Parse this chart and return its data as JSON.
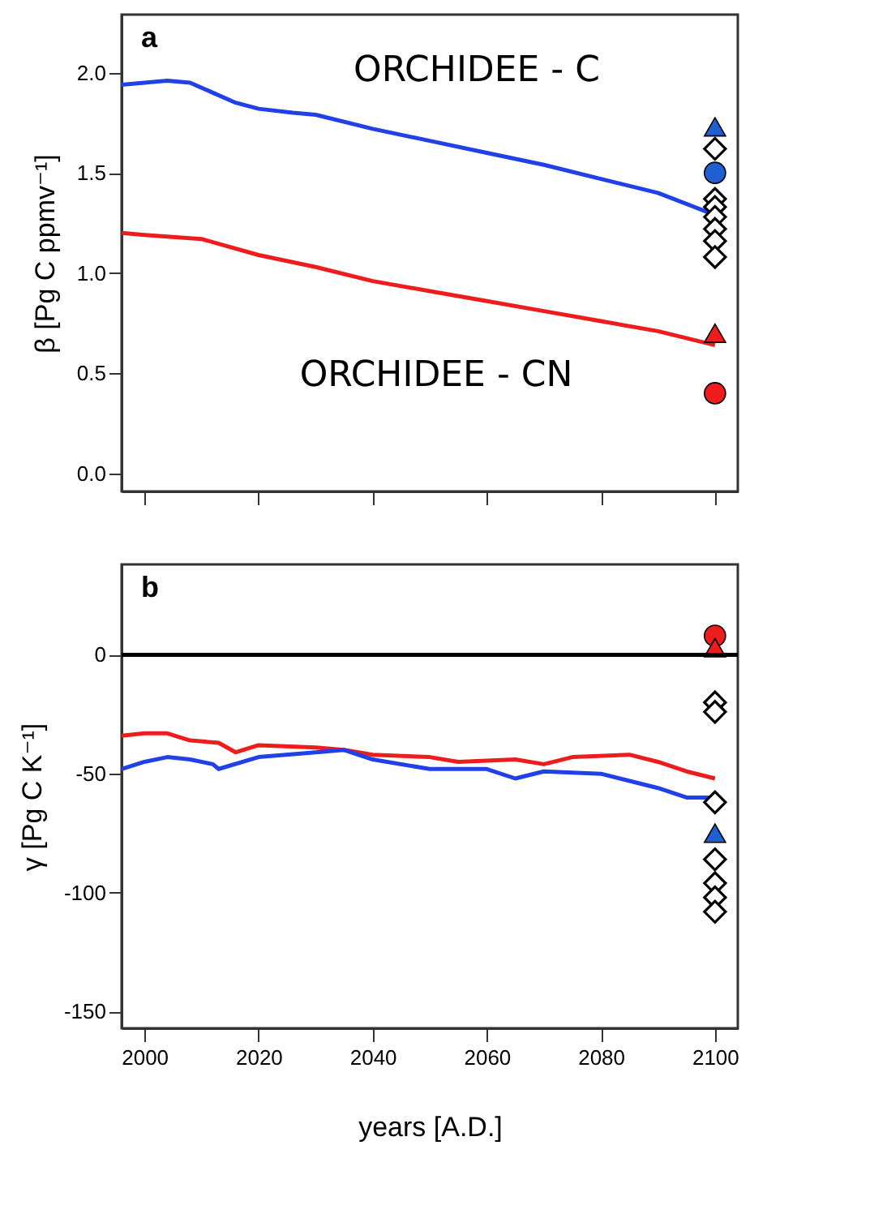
{
  "chart_data": [
    {
      "type": "line",
      "title": "a",
      "ylabel": "β [Pg C ppmv⁻¹]",
      "xlim": [
        1996,
        2104
      ],
      "ylim": [
        -0.09,
        2.29
      ],
      "xticks": [
        2000,
        2020,
        2040,
        2060,
        2080,
        2100
      ],
      "yticks": [
        {
          "value": 0,
          "label": "0.0"
        },
        0.5,
        {
          "value": 1,
          "label": "1.0"
        },
        1.5,
        {
          "value": 2,
          "label": "2.0"
        }
      ],
      "tick_labels": "y",
      "series": [
        {
          "name": "ORCHIDEE - C",
          "color": "#2040e8",
          "x": [
            1996,
            2000,
            2004,
            2008,
            2012,
            2016,
            2020,
            2026,
            2030,
            2040,
            2050,
            2060,
            2070,
            2080,
            2090,
            2100
          ],
          "values": [
            1.94,
            1.95,
            1.96,
            1.95,
            1.9,
            1.85,
            1.82,
            1.8,
            1.79,
            1.72,
            1.66,
            1.6,
            1.54,
            1.47,
            1.4,
            1.29
          ]
        },
        {
          "name": "ORCHIDEE - CN",
          "color": "#ee1c1c",
          "x": [
            1996,
            2000,
            2010,
            2020,
            2030,
            2040,
            2050,
            2060,
            2070,
            2080,
            2090,
            2100
          ],
          "values": [
            1.2,
            1.19,
            1.17,
            1.09,
            1.03,
            0.96,
            0.91,
            0.86,
            0.81,
            0.76,
            0.71,
            0.64
          ]
        },
        {
          "type": "scatter",
          "color": "#000000",
          "marker": "diamond",
          "x": [
            2100,
            2100,
            2100,
            2100,
            2100,
            2100,
            2100
          ],
          "values": [
            1.62,
            1.37,
            1.33,
            1.28,
            1.22,
            1.16,
            1.08
          ]
        },
        {
          "type": "scatter",
          "color": "#1f5fd0",
          "marker": "triangle",
          "x": [
            2100
          ],
          "values": [
            1.73
          ]
        },
        {
          "type": "scatter",
          "color": "#1f5fd0",
          "marker": "circle",
          "x": [
            2100
          ],
          "values": [
            1.5
          ]
        },
        {
          "type": "scatter",
          "color": "#ee1c1c",
          "marker": "triangle",
          "x": [
            2100
          ],
          "values": [
            0.7
          ]
        },
        {
          "type": "scatter",
          "color": "#ee1c1c",
          "marker": "circle",
          "x": [
            2100
          ],
          "values": [
            0.4
          ]
        }
      ]
    },
    {
      "type": "line",
      "title": "b",
      "xlabel": "years [A.D.]",
      "ylabel": "γ [Pg C K⁻¹]",
      "xlim": [
        1996,
        2104
      ],
      "ylim": [
        -157,
        38
      ],
      "xticks": [
        2000,
        2020,
        2040,
        2060,
        2080,
        2100
      ],
      "yticks": [
        -150,
        -100,
        -50,
        0
      ],
      "ref_lines": [
        {
          "axis": "y",
          "value": 0,
          "color": "#000000"
        }
      ],
      "series": [
        {
          "color": "#ee1c1c",
          "x": [
            1996,
            2000,
            2004,
            2008,
            2013,
            2016,
            2020,
            2030,
            2035,
            2040,
            2050,
            2055,
            2065,
            2070,
            2075,
            2085,
            2090,
            2095,
            2100
          ],
          "values": [
            -34,
            -33,
            -33,
            -36,
            -37,
            -41,
            -38,
            -39,
            -40,
            -42,
            -43,
            -45,
            -44,
            -46,
            -43,
            -42,
            -45,
            -49,
            -52
          ]
        },
        {
          "color": "#2040e8",
          "x": [
            1996,
            2000,
            2004,
            2008,
            2012,
            2013,
            2020,
            2030,
            2035,
            2040,
            2050,
            2060,
            2065,
            2070,
            2080,
            2090,
            2095,
            2100
          ],
          "values": [
            -48,
            -45,
            -43,
            -44,
            -46,
            -48,
            -43,
            -41,
            -40,
            -44,
            -48,
            -48,
            -52,
            -49,
            -50,
            -56,
            -60,
            -60
          ]
        },
        {
          "type": "scatter",
          "color": "#000000",
          "marker": "diamond",
          "x": [
            2100,
            2100,
            2100,
            2100,
            2100,
            2100,
            2100
          ],
          "values": [
            -20,
            -24,
            -62,
            -86,
            -96,
            -102,
            -108
          ]
        },
        {
          "type": "scatter",
          "color": "#1f5fd0",
          "marker": "triangle",
          "x": [
            2100
          ],
          "values": [
            -75
          ]
        },
        {
          "type": "scatter",
          "color": "#ee1c1c",
          "marker": "circle",
          "x": [
            2100
          ],
          "values": [
            8
          ]
        },
        {
          "type": "scatter",
          "color": "#ee1c1c",
          "marker": "triangle",
          "x": [
            2100
          ],
          "values": [
            3
          ]
        }
      ]
    }
  ]
}
